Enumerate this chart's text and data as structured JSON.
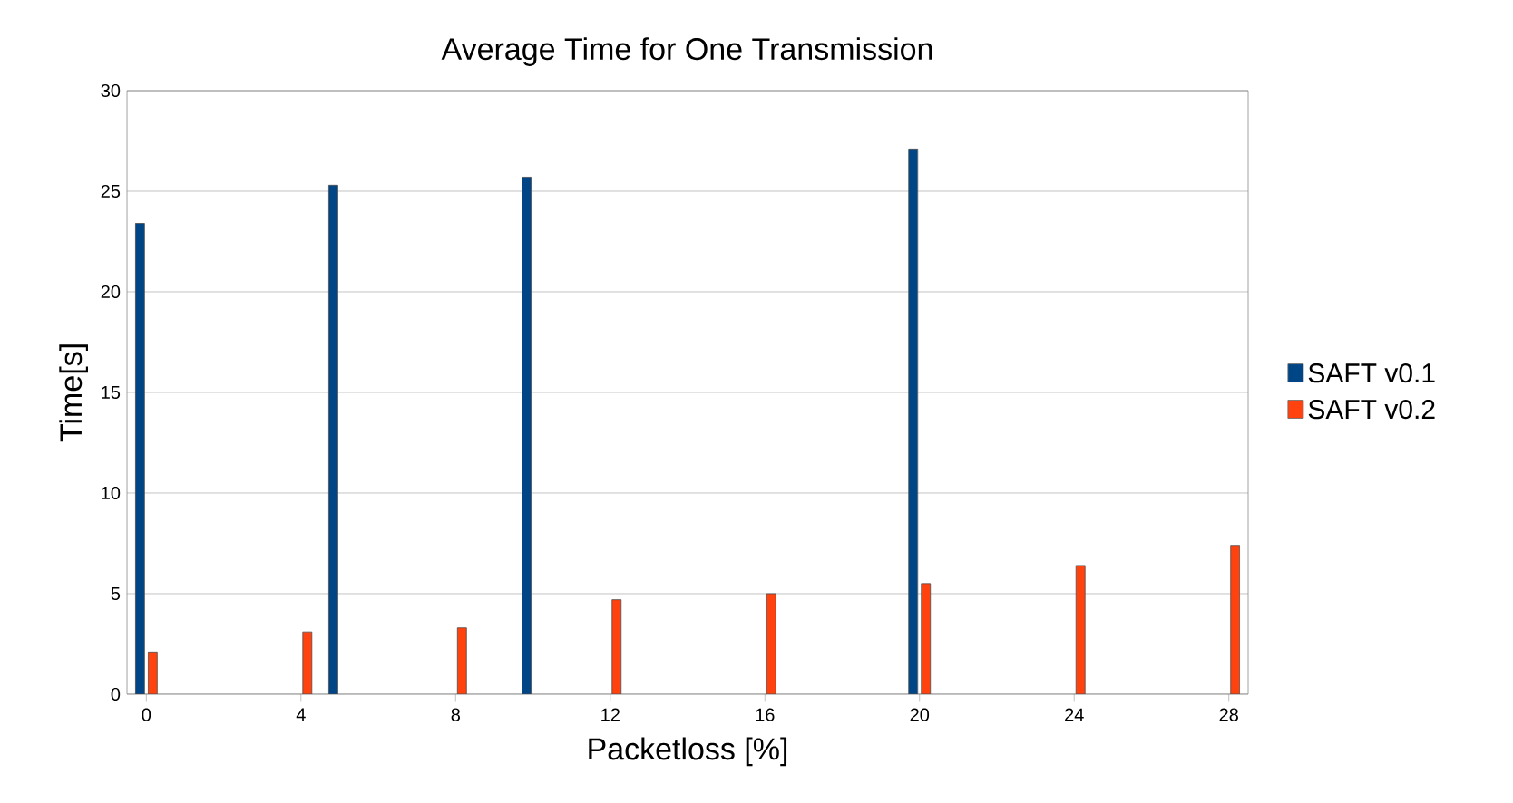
{
  "chart_data": {
    "type": "bar",
    "title": "Average Time for One Transmission",
    "xlabel": "Packetloss [%]",
    "ylabel": "Time[s]",
    "categories": [
      "0",
      null,
      null,
      null,
      "4",
      null,
      null,
      null,
      "8",
      null,
      null,
      null,
      "12",
      null,
      null,
      null,
      "16",
      null,
      null,
      null,
      "20",
      null,
      null,
      null,
      "24",
      null,
      null,
      null,
      "28"
    ],
    "series": [
      {
        "name": "SAFT v0.1",
        "color": "#004586",
        "values": [
          23.4,
          null,
          null,
          null,
          null,
          25.3,
          null,
          null,
          null,
          null,
          25.7,
          null,
          null,
          null,
          null,
          null,
          null,
          null,
          null,
          null,
          27.1,
          null,
          null,
          null,
          null,
          null,
          null,
          null,
          null
        ]
      },
      {
        "name": "SAFT v0.2",
        "color": "#ff420e",
        "values": [
          2.1,
          null,
          null,
          null,
          3.1,
          null,
          null,
          null,
          3.3,
          null,
          null,
          null,
          4.7,
          null,
          null,
          null,
          5.0,
          null,
          null,
          null,
          5.5,
          null,
          null,
          null,
          6.4,
          null,
          null,
          null,
          7.4
        ]
      }
    ],
    "ylim": [
      0,
      30
    ],
    "yticks": [
      0,
      5,
      10,
      15,
      20,
      25,
      30
    ],
    "grid": "y",
    "legend": "right"
  }
}
